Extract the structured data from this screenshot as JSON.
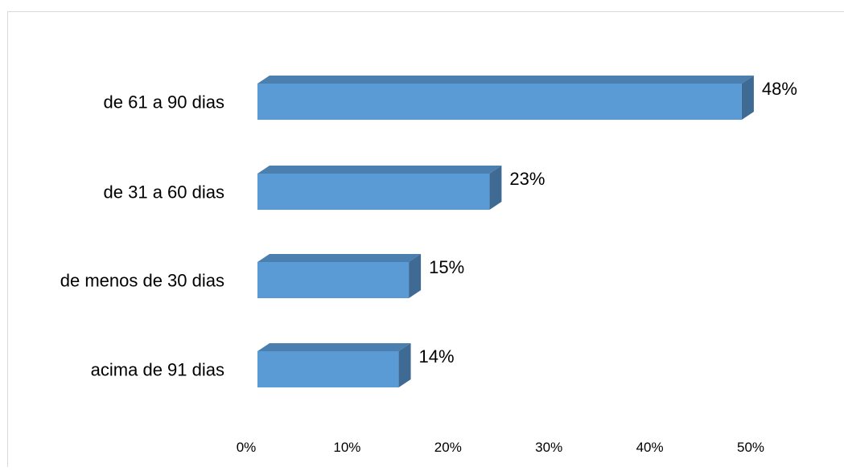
{
  "chart_data": {
    "type": "bar",
    "orientation": "horizontal",
    "style": "3d",
    "categories": [
      "de 61 a 90 dias",
      "de 31 a 60 dias",
      "de menos de 30 dias",
      "acima de 91 dias"
    ],
    "values": [
      48,
      23,
      15,
      14
    ],
    "data_labels": [
      "48%",
      "23%",
      "15%",
      "14%"
    ],
    "xlim": [
      0,
      50
    ],
    "x_ticks": [
      "0%",
      "10%",
      "20%",
      "30%",
      "40%",
      "50%"
    ],
    "grid": false,
    "legend": "none",
    "colors": {
      "bar_front": "#5b9bd5",
      "bar_top": "#4a7fb0",
      "bar_side": "#3e6a94",
      "frame": "#d9d9d9"
    }
  }
}
